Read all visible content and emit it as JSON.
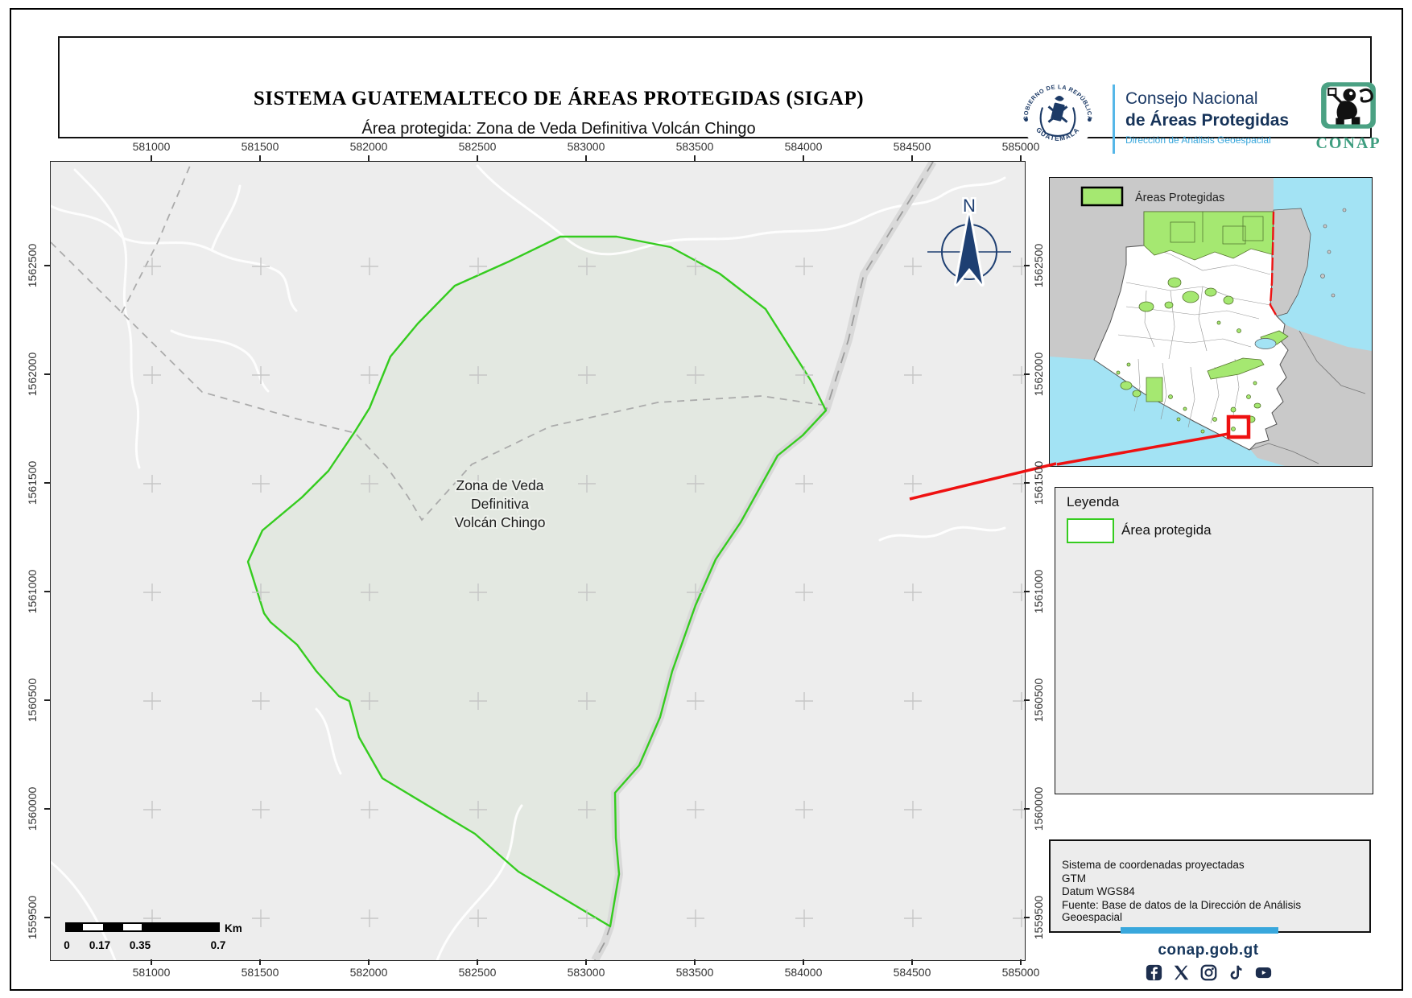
{
  "header": {
    "title": "SISTEMA GUATEMALTECO DE ÁREAS PROTEGIDAS  (SIGAP)",
    "subtitle": "Área protegida: Zona de Veda Definitiva Volcán Chingo",
    "seal_top_text": "GOBIERNO DE LA REPÚBLICA",
    "seal_bottom_text": "GUATEMALA",
    "org_line1": "Consejo Nacional",
    "org_line2": "de Áreas Protegidas",
    "org_line3": "Dirección de Análisis Geoespacial",
    "conap_wordmark": "CONAP"
  },
  "map": {
    "x_ticks": [
      "581000",
      "581500",
      "582000",
      "582500",
      "583000",
      "583500",
      "584000",
      "584500",
      "585000"
    ],
    "y_ticks": [
      "1562500",
      "1562000",
      "1561500",
      "1561000",
      "1560500",
      "1560000",
      "1559500"
    ],
    "area_label": [
      "Zona de Veda",
      "Definitiva",
      "Volcán Chingo"
    ],
    "north_label": "N",
    "scalebar": {
      "labels": [
        "0",
        "0.17",
        "0.35",
        "0.7"
      ],
      "unit": "Km"
    }
  },
  "inset": {
    "legend_label": "Áreas Protegidas"
  },
  "legend_box": {
    "title": "Leyenda",
    "item_label": "Área protegida"
  },
  "info_box": {
    "lines": [
      "Sistema de coordenadas proyectadas",
      "GTM",
      "Datum WGS84",
      "Fuente: Base de datos de la Dirección de Análisis Geoespacial"
    ]
  },
  "footer": {
    "website": "conap.gob.gt",
    "social": [
      "facebook",
      "x",
      "instagram",
      "tiktok",
      "youtube"
    ]
  },
  "colors": {
    "protected_area_stroke": "#35cc1f",
    "inset_protected_fill": "#a5e871",
    "navy": "#1c3a66",
    "light_blue": "#39a7dc",
    "highlight_red": "#ee1111",
    "water": "#a3e3f4",
    "map_background": "#ededed"
  }
}
